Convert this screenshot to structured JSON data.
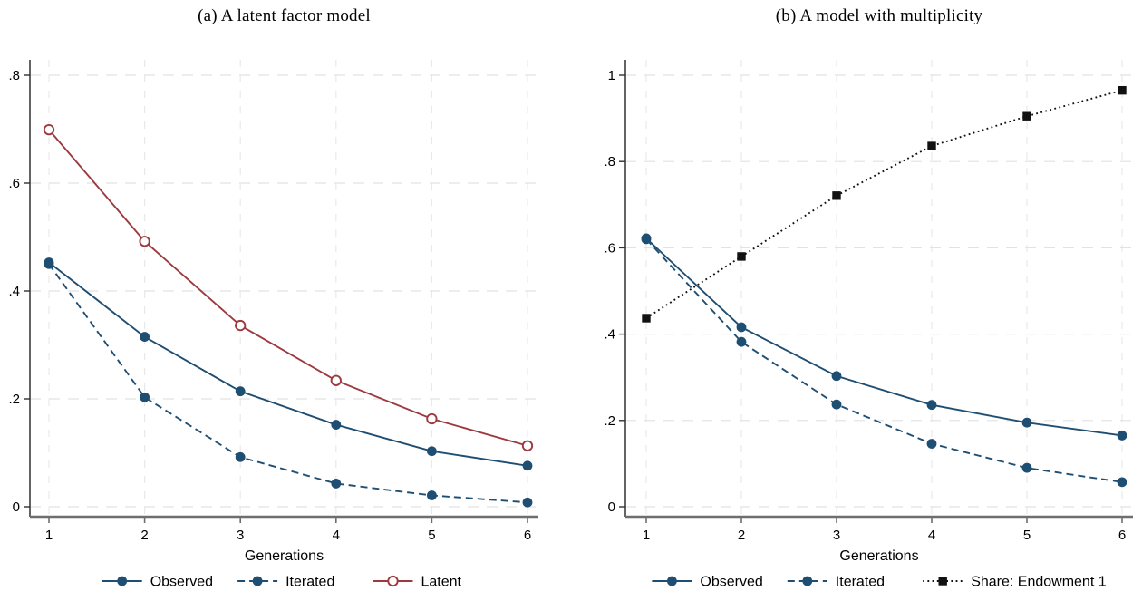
{
  "colors": {
    "navy": "#1f4e73",
    "maroon": "#9c3a3f",
    "black": "#111111",
    "grid_h": "#e2e2e2",
    "grid_v": "#e9e9e9",
    "y_axis": "#303030",
    "x_axis": "#6e6e6e"
  },
  "chart_data": [
    {
      "type": "line",
      "title": "(a) A latent factor model",
      "xlabel": "Generations",
      "x": [
        1,
        2,
        3,
        4,
        5,
        6
      ],
      "x_tick_labels": [
        "1",
        "2",
        "3",
        "4",
        "5",
        "6"
      ],
      "y_ticks": [
        0,
        0.2,
        0.4,
        0.6,
        0.8
      ],
      "y_tick_labels": [
        "0",
        ".2",
        ".4",
        ".6",
        ".8"
      ],
      "ylim": [
        0,
        0.83
      ],
      "grid": "dashed-both",
      "legend_position": "bottom",
      "series": [
        {
          "name": "Observed",
          "color": "#1f4e73",
          "line": "solid",
          "marker": "filled-circle",
          "values": [
            0.453,
            0.315,
            0.214,
            0.152,
            0.103,
            0.076
          ]
        },
        {
          "name": "Iterated",
          "color": "#1f4e73",
          "line": "dashed",
          "marker": "filled-circle",
          "values": [
            0.45,
            0.203,
            0.092,
            0.043,
            0.021,
            0.008
          ]
        },
        {
          "name": "Latent",
          "color": "#9c3a3f",
          "line": "solid",
          "marker": "open-circle",
          "values": [
            0.699,
            0.492,
            0.336,
            0.234,
            0.163,
            0.113
          ]
        }
      ]
    },
    {
      "type": "line",
      "title": "(b) A model with multiplicity",
      "xlabel": "Generations",
      "x": [
        1,
        2,
        3,
        4,
        5,
        6
      ],
      "x_tick_labels": [
        "1",
        "2",
        "3",
        "4",
        "5",
        "6"
      ],
      "y_ticks": [
        0,
        0.2,
        0.4,
        0.6,
        0.8,
        1
      ],
      "y_tick_labels": [
        "0",
        ".2",
        ".4",
        ".6",
        ".8",
        "1"
      ],
      "ylim": [
        0,
        1.03
      ],
      "grid": "dashed-both",
      "legend_position": "bottom",
      "series": [
        {
          "name": "Observed",
          "color": "#1f4e73",
          "line": "solid",
          "marker": "filled-circle",
          "values": [
            0.622,
            0.416,
            0.303,
            0.236,
            0.195,
            0.165
          ]
        },
        {
          "name": "Iterated",
          "color": "#1f4e73",
          "line": "dashed",
          "marker": "filled-circle",
          "values": [
            0.62,
            0.382,
            0.237,
            0.146,
            0.09,
            0.057
          ]
        },
        {
          "name": "Share: Endowment 1",
          "color": "#111111",
          "line": "dotted",
          "marker": "filled-square",
          "values": [
            0.437,
            0.58,
            0.721,
            0.836,
            0.905,
            0.965
          ]
        }
      ]
    }
  ]
}
